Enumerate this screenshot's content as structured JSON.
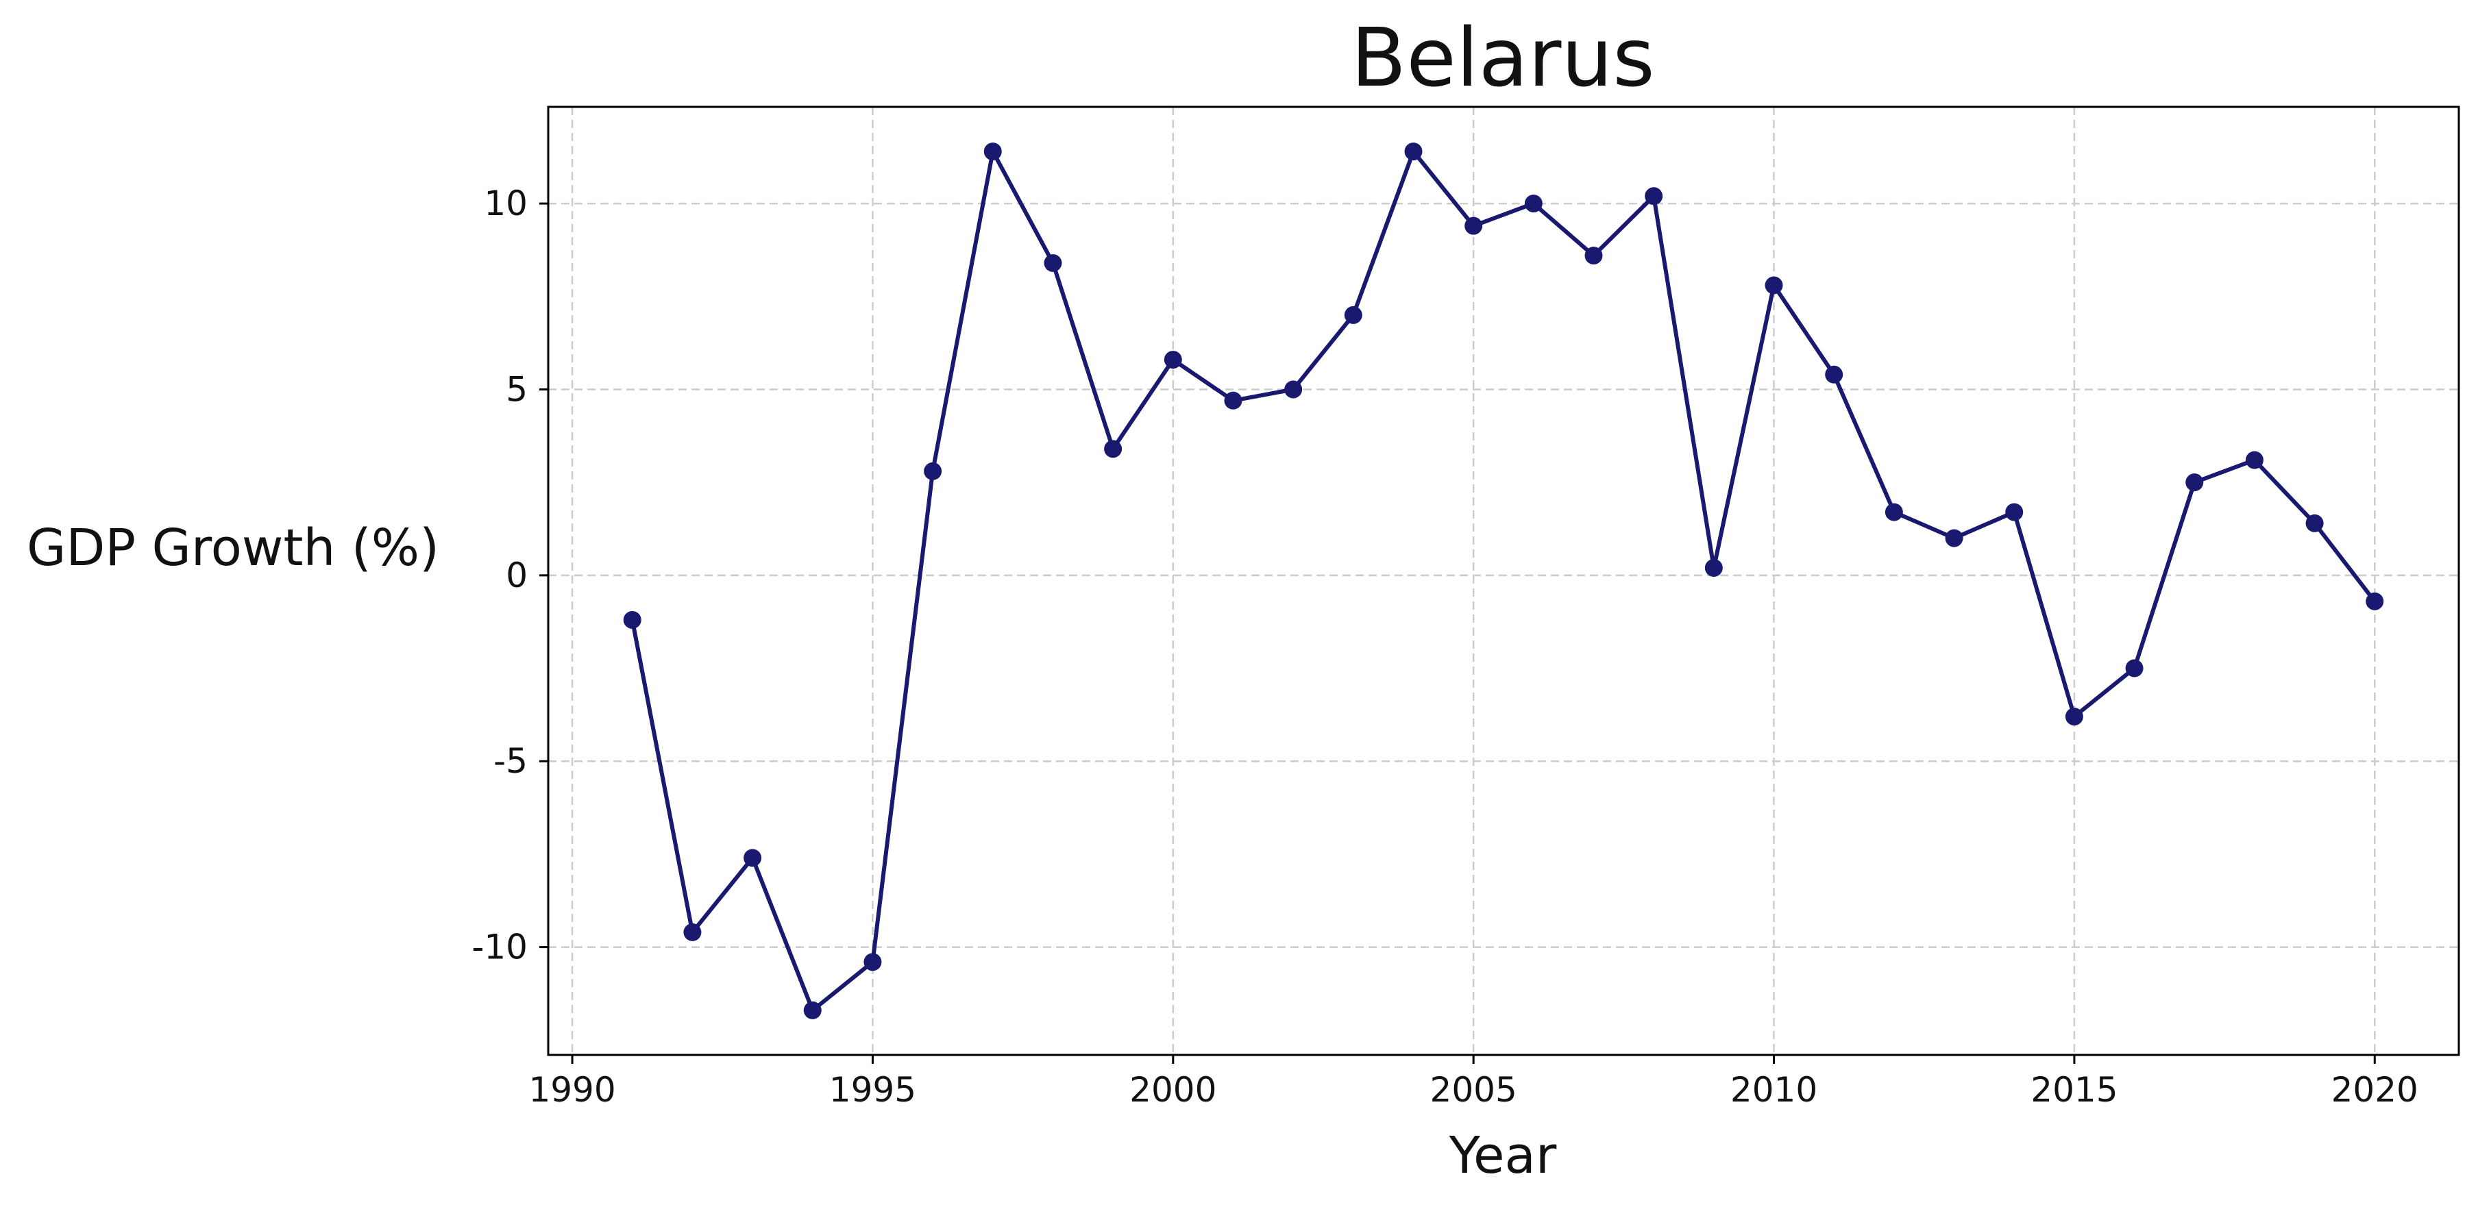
{
  "colors": {
    "series": "#191970",
    "grid": "#cccccc",
    "axis": "#000000"
  },
  "chart_data": {
    "type": "line",
    "title": "Belarus",
    "xlabel": "Year",
    "ylabel": "GDP Growth (%)",
    "xlim": [
      1989.6,
      2021.4
    ],
    "ylim": [
      -12.9,
      12.6
    ],
    "grid": true,
    "grid_style": "dashed",
    "marker": "circle",
    "x_ticks": [
      1990,
      1995,
      2000,
      2005,
      2010,
      2015,
      2020
    ],
    "x_tick_labels": [
      "1990",
      "1995",
      "2000",
      "2005",
      "2010",
      "2015",
      "2020"
    ],
    "y_ticks": [
      10,
      5,
      0,
      -5,
      -10
    ],
    "y_tick_labels": [
      "10",
      "5",
      "0",
      "-5",
      "-10"
    ],
    "x": [
      1991,
      1992,
      1993,
      1994,
      1995,
      1996,
      1997,
      1998,
      1999,
      2000,
      2001,
      2002,
      2003,
      2004,
      2005,
      2006,
      2007,
      2008,
      2009,
      2010,
      2011,
      2012,
      2013,
      2014,
      2015,
      2016,
      2017,
      2018,
      2019,
      2020
    ],
    "values": [
      -1.2,
      -9.6,
      -7.6,
      -11.7,
      -10.4,
      2.8,
      11.4,
      8.4,
      3.4,
      5.8,
      4.7,
      5.0,
      7.0,
      11.4,
      9.4,
      10.0,
      8.6,
      10.2,
      0.2,
      7.8,
      5.4,
      1.7,
      1.0,
      1.7,
      -3.8,
      -2.5,
      2.5,
      3.1,
      1.4,
      -0.7
    ]
  }
}
